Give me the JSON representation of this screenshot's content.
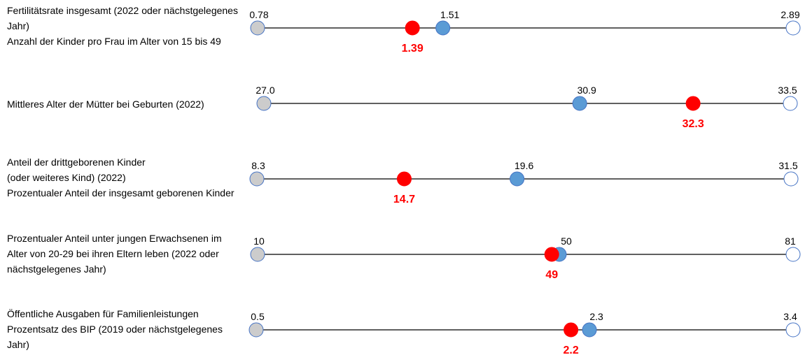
{
  "chart_data": {
    "type": "dot-range",
    "colors": {
      "min_dot": "#cccccc",
      "max_dot": "#ffffff",
      "avg_dot": "#5b9bd5",
      "country_dot": "#ff0000",
      "dot_outline": "#4472c4",
      "line": "#000000",
      "country_label": "#ff0000"
    },
    "rows": [
      {
        "label_lines": [
          "Fertilitätsrate insgesamt (2022 oder nächstgelegenes",
          "Jahr)",
          "Anzahl der Kinder pro Frau im Alter von 15 bis 49"
        ],
        "min": 0.78,
        "min_label": "0.78",
        "avg": 1.51,
        "avg_label": "1.51",
        "max": 2.89,
        "max_label": "2.89",
        "country": 1.39,
        "country_label": "1.39"
      },
      {
        "label_lines": [
          "Mittleres Alter der Mütter bei Geburten (2022)"
        ],
        "min": 27.0,
        "min_label": "27.0",
        "avg": 30.9,
        "avg_label": "30.9",
        "max": 33.5,
        "max_label": "33.5",
        "country": 32.3,
        "country_label": "32.3"
      },
      {
        "label_lines": [
          "Anteil der drittgeborenen Kinder",
          "(oder weiteres Kind) (2022)",
          "Prozentualer Anteil der insgesamt geborenen Kinder"
        ],
        "min": 8.3,
        "min_label": "8.3",
        "avg": 19.6,
        "avg_label": "19.6",
        "max": 31.5,
        "max_label": "31.5",
        "country": 14.7,
        "country_label": "14.7"
      },
      {
        "label_lines": [
          "Prozentualer Anteil unter jungen Erwachsenen im",
          "Alter von 20-29 bei ihren Eltern leben (2022 oder",
          "nächstgelegenes Jahr)"
        ],
        "min": 10,
        "min_label": "10",
        "avg": 50,
        "avg_label": "50",
        "max": 81,
        "max_label": "81",
        "country": 49,
        "country_label": "49"
      },
      {
        "label_lines": [
          "Öffentliche Ausgaben für Familienleistungen",
          "Prozentsatz des BIP (2019 oder nächstgelegenes",
          "Jahr)"
        ],
        "min": 0.5,
        "min_label": "0.5",
        "avg": 2.3,
        "avg_label": "2.3",
        "max": 3.4,
        "max_label": "3.4",
        "country": 2.2,
        "country_label": "2.2"
      }
    ]
  }
}
